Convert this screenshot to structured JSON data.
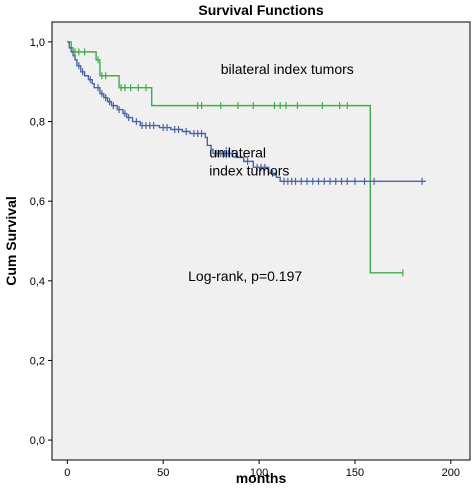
{
  "chart_data": {
    "type": "line",
    "step": true,
    "title": "Survival Functions",
    "xlabel": "months",
    "ylabel": "Cum Survival",
    "xlim": [
      -8,
      210
    ],
    "ylim": [
      -0.05,
      1.05
    ],
    "xticks": [
      0,
      50,
      100,
      150,
      200
    ],
    "xtick_labels": [
      "0",
      "50",
      "100",
      "150",
      "200"
    ],
    "yticks": [
      0.0,
      0.2,
      0.4,
      0.6,
      0.8,
      1.0
    ],
    "ytick_labels": [
      "0,0",
      "0,2",
      "0,4",
      "0,6",
      "0,8",
      "1,0"
    ],
    "grid": false,
    "plot_background": "#f0f0f0",
    "series": [
      {
        "name": "bilateral index tumors",
        "color": "#3fae49",
        "steps": [
          [
            0,
            1.0
          ],
          [
            2,
            0.985
          ],
          [
            3,
            0.975
          ],
          [
            15,
            0.955
          ],
          [
            17,
            0.915
          ],
          [
            27,
            0.885
          ],
          [
            44,
            0.84
          ],
          [
            157,
            0.84
          ],
          [
            158,
            0.42
          ],
          [
            175,
            0.42
          ]
        ],
        "censored": [
          [
            4,
            0.975
          ],
          [
            6,
            0.975
          ],
          [
            9,
            0.975
          ],
          [
            16,
            0.955
          ],
          [
            18,
            0.915
          ],
          [
            20,
            0.915
          ],
          [
            28,
            0.885
          ],
          [
            30,
            0.885
          ],
          [
            33,
            0.885
          ],
          [
            37,
            0.885
          ],
          [
            41,
            0.885
          ],
          [
            68,
            0.84
          ],
          [
            70,
            0.84
          ],
          [
            80,
            0.84
          ],
          [
            89,
            0.84
          ],
          [
            97,
            0.84
          ],
          [
            108,
            0.84
          ],
          [
            111,
            0.84
          ],
          [
            114,
            0.84
          ],
          [
            120,
            0.84
          ],
          [
            133,
            0.84
          ],
          [
            142,
            0.84
          ],
          [
            146,
            0.84
          ],
          [
            175,
            0.42
          ]
        ]
      },
      {
        "name": "unilateral index tumors",
        "color": "#4a65a9",
        "steps": [
          [
            0,
            1.0
          ],
          [
            1,
            0.985
          ],
          [
            2,
            0.975
          ],
          [
            3,
            0.965
          ],
          [
            4,
            0.955
          ],
          [
            5,
            0.94
          ],
          [
            7,
            0.925
          ],
          [
            9,
            0.915
          ],
          [
            11,
            0.905
          ],
          [
            13,
            0.895
          ],
          [
            14,
            0.885
          ],
          [
            17,
            0.87
          ],
          [
            19,
            0.86
          ],
          [
            21,
            0.85
          ],
          [
            23,
            0.84
          ],
          [
            26,
            0.83
          ],
          [
            29,
            0.82
          ],
          [
            31,
            0.81
          ],
          [
            34,
            0.8
          ],
          [
            38,
            0.79
          ],
          [
            48,
            0.785
          ],
          [
            54,
            0.78
          ],
          [
            60,
            0.775
          ],
          [
            64,
            0.77
          ],
          [
            72,
            0.76
          ],
          [
            73,
            0.74
          ],
          [
            75,
            0.73
          ],
          [
            76,
            0.72
          ],
          [
            88,
            0.71
          ],
          [
            92,
            0.7
          ],
          [
            97,
            0.685
          ],
          [
            105,
            0.67
          ],
          [
            109,
            0.66
          ],
          [
            111,
            0.65
          ],
          [
            187,
            0.65
          ]
        ],
        "censored": [
          [
            6,
            0.94
          ],
          [
            8,
            0.925
          ],
          [
            12,
            0.905
          ],
          [
            16,
            0.885
          ],
          [
            18,
            0.87
          ],
          [
            20,
            0.86
          ],
          [
            22,
            0.85
          ],
          [
            24,
            0.84
          ],
          [
            27,
            0.83
          ],
          [
            30,
            0.82
          ],
          [
            32,
            0.81
          ],
          [
            36,
            0.8
          ],
          [
            39,
            0.79
          ],
          [
            41,
            0.79
          ],
          [
            43,
            0.79
          ],
          [
            45,
            0.79
          ],
          [
            50,
            0.785
          ],
          [
            52,
            0.785
          ],
          [
            56,
            0.78
          ],
          [
            58,
            0.78
          ],
          [
            62,
            0.775
          ],
          [
            66,
            0.77
          ],
          [
            68,
            0.77
          ],
          [
            70,
            0.77
          ],
          [
            78,
            0.72
          ],
          [
            80,
            0.72
          ],
          [
            82,
            0.72
          ],
          [
            84,
            0.72
          ],
          [
            86,
            0.72
          ],
          [
            94,
            0.7
          ],
          [
            99,
            0.685
          ],
          [
            101,
            0.685
          ],
          [
            103,
            0.685
          ],
          [
            107,
            0.67
          ],
          [
            113,
            0.65
          ],
          [
            115,
            0.65
          ],
          [
            117,
            0.65
          ],
          [
            119,
            0.65
          ],
          [
            122,
            0.65
          ],
          [
            125,
            0.65
          ],
          [
            128,
            0.65
          ],
          [
            131,
            0.65
          ],
          [
            134,
            0.65
          ],
          [
            137,
            0.65
          ],
          [
            140,
            0.65
          ],
          [
            143,
            0.65
          ],
          [
            146,
            0.65
          ],
          [
            150,
            0.65
          ],
          [
            155,
            0.65
          ],
          [
            160,
            0.65
          ],
          [
            185,
            0.65
          ]
        ]
      }
    ],
    "annotations": [
      {
        "id": "bilateral",
        "text": "bilateral index tumors",
        "lines": [
          "bilateral index tumors"
        ],
        "x": 80,
        "y": 0.92
      },
      {
        "id": "unilateral",
        "text": "unilateral index tumors",
        "lines": [
          "unilateral",
          "index tumors"
        ],
        "x": 74,
        "y": 0.71
      },
      {
        "id": "logrank",
        "text": "Log-rank, p=0.197",
        "lines": [
          "Log-rank, p=0.197"
        ],
        "x": 63,
        "y": 0.4
      }
    ]
  }
}
